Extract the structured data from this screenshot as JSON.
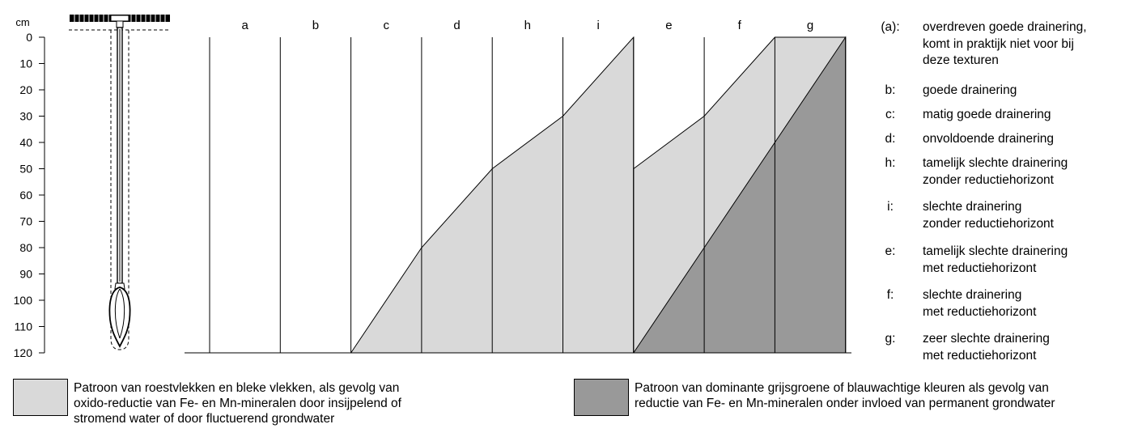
{
  "depth_axis": {
    "unit": "cm",
    "ticks": [
      "0",
      "10",
      "20",
      "30",
      "40",
      "50",
      "60",
      "70",
      "80",
      "90",
      "100",
      "110",
      "120"
    ]
  },
  "columns": [
    "a",
    "b",
    "c",
    "d",
    "h",
    "i",
    "e",
    "f",
    "g"
  ],
  "pattern_boundaries": {
    "light_zone_1": {
      "start_column": "c",
      "end_column": "i",
      "depth_at_column_edges": [
        120,
        80,
        50,
        30,
        0
      ]
    },
    "light_zone_2": {
      "start_column": "e",
      "end_column": "g",
      "depth_at_column_edges": [
        50,
        30,
        0,
        0
      ]
    },
    "dark_zone": {
      "start_column": "e",
      "end_column": "g",
      "depth_at_column_edges": [
        120,
        80,
        40,
        0
      ]
    }
  },
  "legend": [
    {
      "code": "(a):",
      "text": "overdreven goede drainering,\nkomt in praktijk niet voor bij\ndeze texturen"
    },
    {
      "code": "b:",
      "text": "goede drainering"
    },
    {
      "code": "c:",
      "text": "matig goede drainering"
    },
    {
      "code": "d:",
      "text": "onvoldoende drainering"
    },
    {
      "code": "h:",
      "text": "tamelijk slechte drainering\nzonder reductiehorizont"
    },
    {
      "code": "i:",
      "text": "slechte drainering\nzonder reductiehorizont"
    },
    {
      "code": "e:",
      "text": "tamelijk slechte drainering\nmet reductiehorizont"
    },
    {
      "code": "f:",
      "text": "slechte drainering\nmet reductiehorizont"
    },
    {
      "code": "g:",
      "text": "zeer slechte drainering\nmet reductiehorizont"
    }
  ],
  "pattern_key": {
    "light": {
      "color": "#d9d9d9",
      "text": "Patroon van roestvlekken en bleke vlekken, als gevolg van\noxido-reductie van Fe- en Mn-mineralen door insijpelend of\nstromend water of door fluctuerend grondwater"
    },
    "dark": {
      "color": "#999999",
      "text": "Patroon van dominante grijsgroene of blauwachtige kleuren als gevolg van\nreductie van Fe- en Mn-mineralen onder invloed van permanent grondwater"
    }
  },
  "icons": {
    "tool": "soil-auger-icon"
  }
}
